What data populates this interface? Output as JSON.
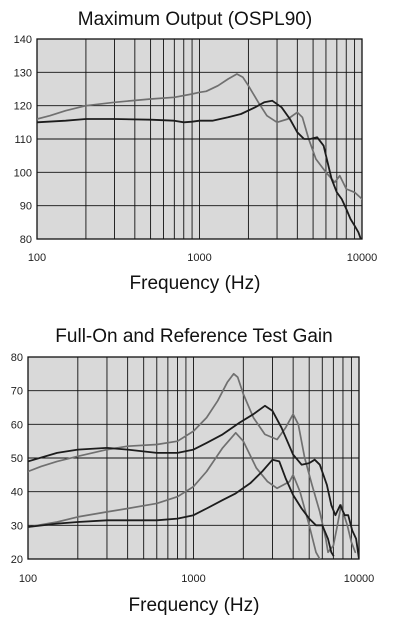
{
  "colors": {
    "dark": "#1c1c1c",
    "gray": "#707070",
    "plot_bg": "#d9d9d9",
    "grid": "#111111"
  },
  "chart_data": [
    {
      "type": "line",
      "title": "Maximum Output (OSPL90)",
      "xlabel": "Frequency (Hz)",
      "ylabel": "",
      "x_scale": "log",
      "xlim": [
        100,
        10000
      ],
      "ylim": [
        80,
        140
      ],
      "x_ticks": [
        "100",
        "1000",
        "10000"
      ],
      "y_ticks": [
        "80",
        "90",
        "100",
        "110",
        "120",
        "130",
        "140"
      ],
      "grid": true,
      "series": [
        {
          "color": "gray",
          "points": [
            [
              100,
              116
            ],
            [
              120,
              117
            ],
            [
              150,
              118.5
            ],
            [
              200,
              120
            ],
            [
              300,
              121
            ],
            [
              500,
              122
            ],
            [
              700,
              122.5
            ],
            [
              900,
              123.5
            ],
            [
              1000,
              124
            ],
            [
              1100,
              124.3
            ],
            [
              1300,
              126
            ],
            [
              1500,
              128
            ],
            [
              1700,
              129.5
            ],
            [
              1850,
              128.5
            ],
            [
              2000,
              126
            ],
            [
              2300,
              121
            ],
            [
              2600,
              117
            ],
            [
              3000,
              115
            ],
            [
              3500,
              116
            ],
            [
              4000,
              118
            ],
            [
              4300,
              116.5
            ],
            [
              4700,
              110
            ],
            [
              5200,
              104
            ],
            [
              6000,
              100
            ],
            [
              6800,
              97
            ],
            [
              7300,
              99
            ],
            [
              8000,
              95
            ],
            [
              9000,
              94
            ],
            [
              10000,
              92
            ]
          ]
        },
        {
          "color": "dark",
          "points": [
            [
              100,
              115
            ],
            [
              150,
              115.5
            ],
            [
              200,
              116
            ],
            [
              300,
              116
            ],
            [
              500,
              115.8
            ],
            [
              700,
              115.5
            ],
            [
              800,
              115
            ],
            [
              900,
              115.2
            ],
            [
              1000,
              115.5
            ],
            [
              1200,
              115.5
            ],
            [
              1500,
              116.5
            ],
            [
              1800,
              117.5
            ],
            [
              2200,
              119.5
            ],
            [
              2500,
              121
            ],
            [
              2800,
              121.5
            ],
            [
              3200,
              119.5
            ],
            [
              3600,
              116
            ],
            [
              4000,
              112
            ],
            [
              4400,
              110
            ],
            [
              4800,
              110
            ],
            [
              5300,
              110.5
            ],
            [
              5800,
              108
            ],
            [
              6500,
              98
            ],
            [
              7000,
              94
            ],
            [
              7500,
              92
            ],
            [
              8000,
              89
            ],
            [
              8500,
              86
            ],
            [
              9000,
              84
            ],
            [
              9500,
              82
            ],
            [
              10000,
              79
            ]
          ]
        }
      ]
    },
    {
      "type": "line",
      "title": "Full-On and Reference Test Gain",
      "xlabel": "Frequency (Hz)",
      "ylabel": "",
      "x_scale": "log",
      "xlim": [
        100,
        10000
      ],
      "ylim": [
        20,
        80
      ],
      "x_ticks": [
        "100",
        "1000",
        "10000"
      ],
      "y_ticks": [
        "20",
        "30",
        "40",
        "50",
        "60",
        "70",
        "80"
      ],
      "grid": true,
      "series": [
        {
          "color": "gray",
          "points": [
            [
              100,
              46
            ],
            [
              120,
              47.5
            ],
            [
              150,
              49
            ],
            [
              200,
              50.5
            ],
            [
              300,
              52.5
            ],
            [
              400,
              53.5
            ],
            [
              600,
              54
            ],
            [
              800,
              55
            ],
            [
              1000,
              58
            ],
            [
              1200,
              62
            ],
            [
              1400,
              67
            ],
            [
              1600,
              72.5
            ],
            [
              1750,
              75
            ],
            [
              1850,
              74
            ],
            [
              2000,
              69
            ],
            [
              2300,
              62
            ],
            [
              2700,
              57
            ],
            [
              3200,
              55.5
            ],
            [
              3600,
              59
            ],
            [
              4000,
              63
            ],
            [
              4300,
              60
            ],
            [
              4700,
              50
            ],
            [
              5200,
              42
            ],
            [
              5800,
              34
            ],
            [
              6300,
              26
            ],
            [
              6500,
              22
            ],
            [
              7000,
              24
            ],
            [
              7400,
              30
            ],
            [
              7800,
              36
            ],
            [
              8000,
              34
            ],
            [
              8500,
              30
            ],
            [
              9000,
              25
            ],
            [
              9500,
              22
            ]
          ]
        },
        {
          "color": "dark",
          "points": [
            [
              100,
              49
            ],
            [
              150,
              51.5
            ],
            [
              200,
              52.5
            ],
            [
              300,
              53
            ],
            [
              400,
              52.5
            ],
            [
              600,
              51.5
            ],
            [
              800,
              51.5
            ],
            [
              1000,
              52.5
            ],
            [
              1200,
              54.5
            ],
            [
              1500,
              57
            ],
            [
              1900,
              60.5
            ],
            [
              2300,
              63
            ],
            [
              2700,
              65.5
            ],
            [
              3000,
              64
            ],
            [
              3400,
              59
            ],
            [
              4000,
              51
            ],
            [
              4500,
              48
            ],
            [
              5000,
              48.5
            ],
            [
              5400,
              49.5
            ],
            [
              5800,
              48
            ],
            [
              6400,
              42
            ],
            [
              6800,
              36
            ],
            [
              7200,
              33
            ],
            [
              7700,
              36
            ],
            [
              8200,
              33
            ],
            [
              8600,
              33
            ],
            [
              9100,
              28.5
            ],
            [
              9600,
              26
            ],
            [
              10000,
              20
            ]
          ]
        },
        {
          "color": "gray",
          "points": [
            [
              100,
              29.5
            ],
            [
              150,
              31
            ],
            [
              200,
              32.5
            ],
            [
              300,
              34
            ],
            [
              400,
              35
            ],
            [
              600,
              36.5
            ],
            [
              800,
              38.5
            ],
            [
              1000,
              41.5
            ],
            [
              1200,
              46
            ],
            [
              1500,
              53
            ],
            [
              1800,
              57.5
            ],
            [
              2000,
              55
            ],
            [
              2400,
              47
            ],
            [
              2800,
              43
            ],
            [
              3200,
              41
            ],
            [
              3800,
              43
            ],
            [
              4000,
              45
            ],
            [
              4400,
              40
            ],
            [
              5000,
              30
            ],
            [
              5500,
              22
            ],
            [
              5800,
              20
            ]
          ]
        },
        {
          "color": "dark",
          "points": [
            [
              100,
              29.5
            ],
            [
              150,
              30.5
            ],
            [
              200,
              31
            ],
            [
              300,
              31.5
            ],
            [
              400,
              31.5
            ],
            [
              600,
              31.5
            ],
            [
              800,
              32
            ],
            [
              1000,
              33
            ],
            [
              1200,
              35
            ],
            [
              1500,
              37.5
            ],
            [
              1800,
              39.5
            ],
            [
              2200,
              42.5
            ],
            [
              2600,
              46
            ],
            [
              3000,
              49.5
            ],
            [
              3300,
              49
            ],
            [
              3600,
              44
            ],
            [
              4000,
              39
            ],
            [
              4500,
              35
            ],
            [
              5000,
              32
            ],
            [
              5500,
              30
            ],
            [
              6000,
              30
            ],
            [
              6500,
              26
            ],
            [
              6800,
              22
            ],
            [
              7000,
              21
            ]
          ]
        }
      ]
    }
  ]
}
